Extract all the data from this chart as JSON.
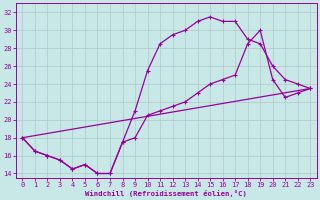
{
  "xlabel": "Windchill (Refroidissement éolien,°C)",
  "bg_color": "#c8e8e8",
  "line_color": "#990099",
  "xlim": [
    -0.5,
    23.5
  ],
  "ylim": [
    13.5,
    33.0
  ],
  "yticks": [
    14,
    16,
    18,
    20,
    22,
    24,
    26,
    28,
    30,
    32
  ],
  "xticks": [
    0,
    1,
    2,
    3,
    4,
    5,
    6,
    7,
    8,
    9,
    10,
    11,
    12,
    13,
    14,
    15,
    16,
    17,
    18,
    19,
    20,
    21,
    22,
    23
  ],
  "grid_color": "#b0c8c8",
  "series1_x": [
    0,
    1,
    2,
    3,
    4,
    5,
    6,
    7,
    8,
    9,
    10,
    11,
    12,
    13,
    14,
    15,
    16,
    17,
    18,
    19,
    20,
    21,
    22,
    23
  ],
  "series1_y": [
    18,
    16.5,
    16,
    15.5,
    14.5,
    15,
    14,
    14,
    17.5,
    21,
    25.5,
    28.5,
    29.5,
    30.0,
    31.0,
    31.5,
    31.0,
    31.0,
    29.0,
    28.5,
    26.0,
    24.5,
    24.0,
    23.5
  ],
  "series2_x": [
    0,
    1,
    2,
    3,
    4,
    5,
    6,
    7,
    8,
    9,
    10,
    11,
    12,
    13,
    14,
    15,
    16,
    17,
    18,
    19,
    20,
    21,
    22,
    23
  ],
  "series2_y": [
    18,
    16.5,
    16,
    15.5,
    14.5,
    15,
    14,
    14,
    17.5,
    18.0,
    20.5,
    21.0,
    21.5,
    22.0,
    23.0,
    24.0,
    24.5,
    25.0,
    28.5,
    30.0,
    24.5,
    22.5,
    23.0,
    23.5
  ],
  "series3_x": [
    0,
    23
  ],
  "series3_y": [
    18,
    23.5
  ]
}
